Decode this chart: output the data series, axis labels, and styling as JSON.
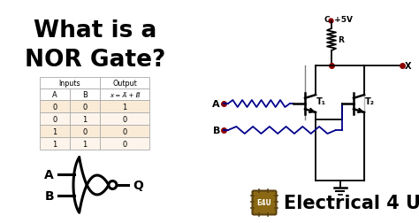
{
  "title_line1": "What is a",
  "title_line2": "NOR Gate?",
  "title_color": "#000000",
  "bg_color": "#ffffff",
  "table_data": [
    [
      "0",
      "0",
      "1"
    ],
    [
      "0",
      "1",
      "0"
    ],
    [
      "1",
      "0",
      "0"
    ],
    [
      "1",
      "1",
      "0"
    ]
  ],
  "table_bg_header": "#faebd7",
  "table_bg_odd": "#faebd7",
  "table_bg_even": "#fdf5eb",
  "wire_color": "#00008B",
  "dot_color": "#8B0000",
  "circuit_color": "#000000",
  "brand_text": "Electrical 4 U",
  "brand_color": "#000000",
  "chip_bg": "#8B6914",
  "chip_border": "#5a4010"
}
